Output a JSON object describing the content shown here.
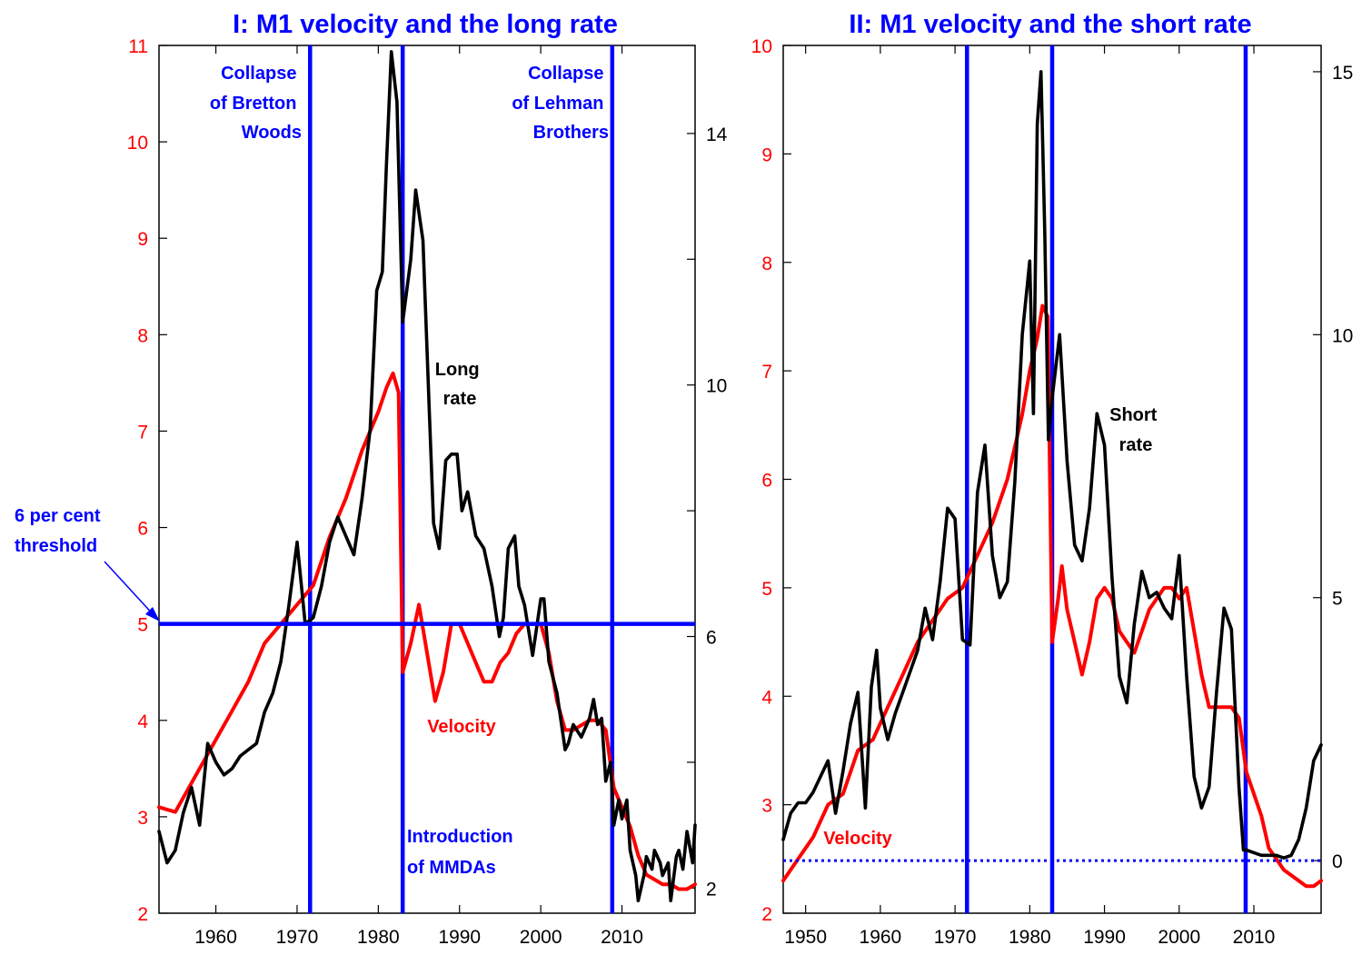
{
  "colors": {
    "velocity": "#ff0000",
    "rate": "#000000",
    "markers": "#0000ff",
    "left_axis": "#ff0000",
    "right_axis": "#000000"
  },
  "chart_data": [
    {
      "type": "line",
      "title": "I: M1 velocity and the long rate",
      "xlim": [
        1953,
        2019
      ],
      "x_ticks": [
        1960,
        1970,
        1980,
        1990,
        2000,
        2010
      ],
      "ylim_left": [
        2,
        11
      ],
      "y_ticks_left": [
        2,
        3,
        4,
        5,
        6,
        7,
        8,
        9,
        10,
        11
      ],
      "ylim_right": [
        1.6,
        15.4
      ],
      "y_ticks_right": [
        2,
        6,
        10,
        14
      ],
      "y_minor_ticks_right": [
        4,
        8,
        12
      ],
      "grid": false,
      "vertical_lines": [
        1971.6,
        1983.0,
        2008.8
      ],
      "horizontal_line": {
        "axis": "left",
        "y": 5.0
      },
      "annotations": {
        "bretton": [
          "Collapse",
          "of Bretton",
          "Woods"
        ],
        "lehman": [
          "Collapse",
          "of Lehman",
          "Brothers"
        ],
        "mmda": [
          "Introduction",
          "of MMDAs"
        ],
        "threshold": [
          "6 per cent",
          "threshold"
        ],
        "long_rate": [
          "Long",
          "rate"
        ],
        "velocity": "Velocity"
      },
      "series": [
        {
          "axis": "left",
          "x": [
            1953,
            1955,
            1958,
            1960,
            1962,
            1964,
            1966,
            1968,
            1970,
            1972,
            1974,
            1976,
            1978,
            1980,
            1981,
            1981.8,
            1982.5,
            1983,
            1984,
            1985,
            1986,
            1987,
            1988,
            1989,
            1990,
            1991,
            1992,
            1993,
            1994,
            1995,
            1996,
            1997,
            1998,
            1999,
            2000,
            2001,
            2002,
            2003,
            2004,
            2005,
            2006,
            2007,
            2008,
            2009,
            2010,
            2011,
            2012,
            2013,
            2014,
            2015,
            2016,
            2017,
            2018,
            2019
          ],
          "y": [
            3.1,
            3.05,
            3.5,
            3.8,
            4.1,
            4.4,
            4.8,
            5.0,
            5.2,
            5.4,
            5.9,
            6.3,
            6.8,
            7.2,
            7.45,
            7.6,
            7.4,
            4.5,
            4.8,
            5.2,
            4.7,
            4.2,
            4.5,
            5.0,
            5.0,
            4.8,
            4.6,
            4.4,
            4.4,
            4.6,
            4.7,
            4.9,
            5.0,
            5.0,
            5.0,
            4.7,
            4.2,
            3.9,
            3.9,
            3.95,
            4.0,
            4.0,
            3.9,
            3.3,
            3.1,
            2.9,
            2.6,
            2.4,
            2.35,
            2.3,
            2.3,
            2.25,
            2.25,
            2.3
          ]
        },
        {
          "axis": "right",
          "x": [
            1953,
            1954,
            1955,
            1956,
            1957,
            1958,
            1959,
            1960,
            1961,
            1962,
            1963,
            1964,
            1965,
            1966,
            1967,
            1968,
            1969,
            1970,
            1971,
            1972,
            1973,
            1974,
            1975,
            1976,
            1977,
            1978,
            1979,
            1979.8,
            1980.5,
            1981,
            1981.6,
            1982.3,
            1983,
            1984,
            1984.6,
            1985.5,
            1986.3,
            1986.8,
            1987.5,
            1988.3,
            1989,
            1989.7,
            1990.3,
            1991,
            1992,
            1993,
            1994,
            1994.9,
            1995.4,
            1996,
            1996.8,
            1997.3,
            1998,
            1999,
            2000,
            2000.4,
            2001,
            2002,
            2003,
            2003.4,
            2004,
            2005,
            2006,
            2006.5,
            2007,
            2007.5,
            2008,
            2008.6,
            2009,
            2009.6,
            2010,
            2010.6,
            2011,
            2011.7,
            2012,
            2012.7,
            2013,
            2013.7,
            2014,
            2014.7,
            2015,
            2015.7,
            2016,
            2016.7,
            2017,
            2017.5,
            2018,
            2018.7,
            2019
          ],
          "y": [
            2.9,
            2.4,
            2.6,
            3.2,
            3.6,
            3.0,
            4.3,
            4.0,
            3.8,
            3.9,
            4.1,
            4.2,
            4.3,
            4.8,
            5.1,
            5.6,
            6.5,
            7.5,
            6.2,
            6.3,
            6.8,
            7.5,
            7.9,
            7.6,
            7.3,
            8.2,
            9.3,
            11.5,
            11.8,
            13.5,
            15.3,
            14.5,
            11.0,
            12.0,
            13.1,
            12.3,
            9.5,
            7.8,
            7.4,
            8.8,
            8.9,
            8.9,
            8.0,
            8.3,
            7.6,
            7.4,
            6.8,
            6.0,
            6.3,
            7.4,
            7.6,
            6.8,
            6.5,
            5.7,
            6.6,
            6.6,
            5.6,
            5.1,
            4.2,
            4.3,
            4.6,
            4.4,
            4.7,
            5.0,
            4.6,
            4.7,
            3.7,
            4.0,
            3.0,
            3.4,
            3.1,
            3.4,
            2.6,
            2.2,
            1.8,
            2.2,
            2.5,
            2.3,
            2.6,
            2.4,
            2.2,
            2.4,
            1.8,
            2.5,
            2.6,
            2.3,
            2.9,
            2.4,
            3.0
          ]
        }
      ]
    },
    {
      "type": "line",
      "title": "II: M1 velocity and the short rate",
      "xlim": [
        1947,
        2019
      ],
      "x_ticks": [
        1950,
        1960,
        1970,
        1980,
        1990,
        2000,
        2010
      ],
      "ylim_left": [
        2,
        10
      ],
      "y_ticks_left": [
        2,
        3,
        4,
        5,
        6,
        7,
        8,
        9,
        10
      ],
      "ylim_right": [
        -1,
        15.5
      ],
      "y_ticks_right": [
        0,
        5,
        10,
        15
      ],
      "grid": false,
      "vertical_lines": [
        1971.6,
        1983.0,
        2008.9
      ],
      "horizontal_line": {
        "axis": "right",
        "y": 0
      },
      "annotations": {
        "short_rate": [
          "Short",
          "rate"
        ],
        "velocity": "Velocity"
      },
      "series": [
        {
          "axis": "left",
          "x": [
            1947,
            1949,
            1951,
            1953,
            1955,
            1957,
            1959,
            1961,
            1963,
            1965,
            1967,
            1969,
            1971,
            1973,
            1975,
            1977,
            1979,
            1980,
            1981,
            1981.7,
            1982.4,
            1983,
            1983.8,
            1984.3,
            1985,
            1986,
            1987,
            1988,
            1989,
            1990,
            1991,
            1992,
            1993,
            1994,
            1995,
            1996,
            1997,
            1998,
            1999,
            2000,
            2001,
            2002,
            2003,
            2004,
            2005,
            2006,
            2007,
            2008,
            2009,
            2010,
            2011,
            2012,
            2013,
            2014,
            2015,
            2016,
            2017,
            2018,
            2019
          ],
          "y": [
            2.3,
            2.5,
            2.7,
            3.0,
            3.1,
            3.5,
            3.6,
            3.9,
            4.2,
            4.5,
            4.7,
            4.9,
            5.0,
            5.3,
            5.6,
            6.0,
            6.6,
            7.0,
            7.3,
            7.6,
            7.5,
            4.5,
            4.9,
            5.2,
            4.8,
            4.5,
            4.2,
            4.5,
            4.9,
            5.0,
            4.9,
            4.6,
            4.5,
            4.4,
            4.6,
            4.8,
            4.9,
            5.0,
            5.0,
            4.9,
            5.0,
            4.6,
            4.2,
            3.9,
            3.9,
            3.9,
            3.9,
            3.8,
            3.3,
            3.1,
            2.9,
            2.6,
            2.5,
            2.4,
            2.35,
            2.3,
            2.25,
            2.25,
            2.3
          ]
        },
        {
          "axis": "right",
          "x": [
            1947,
            1948,
            1949,
            1950,
            1951,
            1952,
            1953,
            1954,
            1955,
            1956,
            1957,
            1958,
            1958.8,
            1959.5,
            1960,
            1961,
            1962,
            1963,
            1964,
            1965,
            1966,
            1967,
            1968,
            1969,
            1970,
            1971,
            1972,
            1973,
            1974,
            1975,
            1976,
            1977,
            1978,
            1979,
            1980,
            1980.5,
            1981,
            1981.5,
            1982,
            1982.5,
            1983,
            1984,
            1985,
            1986,
            1987,
            1988,
            1989,
            1990,
            1991,
            1992,
            1993,
            1994,
            1995,
            1996,
            1997,
            1998,
            1999,
            2000,
            2001,
            2002,
            2003,
            2004,
            2005,
            2006,
            2007,
            2008,
            2008.6,
            2009,
            2010,
            2011,
            2012,
            2013,
            2014,
            2015,
            2016,
            2017,
            2018,
            2019
          ],
          "y": [
            0.4,
            0.9,
            1.1,
            1.1,
            1.3,
            1.6,
            1.9,
            0.9,
            1.7,
            2.6,
            3.2,
            1.0,
            3.3,
            4.0,
            2.9,
            2.3,
            2.8,
            3.2,
            3.6,
            4.0,
            4.8,
            4.2,
            5.3,
            6.7,
            6.5,
            4.2,
            4.1,
            7.0,
            7.9,
            5.8,
            5.0,
            5.3,
            7.2,
            10.0,
            11.4,
            8.5,
            14.0,
            15.0,
            12.0,
            8.0,
            8.8,
            10.0,
            7.6,
            6.0,
            5.7,
            6.7,
            8.5,
            7.9,
            5.4,
            3.5,
            3.0,
            4.5,
            5.5,
            5.0,
            5.1,
            4.8,
            4.6,
            5.8,
            3.5,
            1.6,
            1.0,
            1.4,
            3.2,
            4.8,
            4.4,
            1.4,
            0.2,
            0.2,
            0.15,
            0.1,
            0.1,
            0.1,
            0.05,
            0.1,
            0.4,
            1.0,
            1.9,
            2.2
          ]
        }
      ]
    }
  ]
}
